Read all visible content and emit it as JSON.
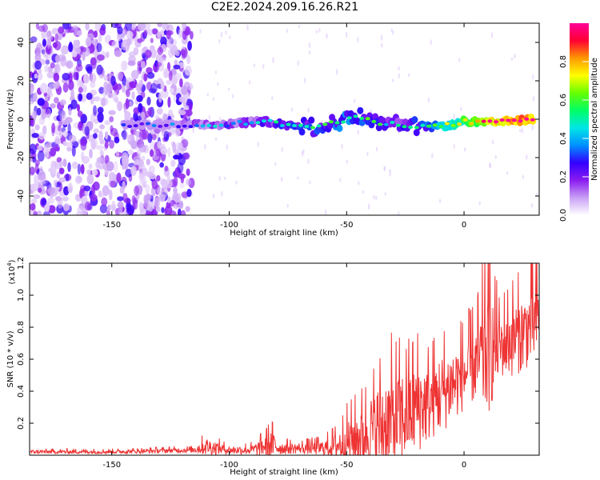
{
  "page": {
    "title": "C2E2.2024.209.16.26.R21"
  },
  "chart_data": [
    {
      "type": "heatmap",
      "name": "spectrogram",
      "xlabel": "Height of straight line (km)",
      "ylabel": "Frequency (Hz)",
      "xlim": [
        -185,
        32
      ],
      "ylim": [
        -50,
        50
      ],
      "xticks": [
        -150,
        -100,
        -50,
        0
      ],
      "yticks": [
        -40,
        -20,
        0,
        20,
        40
      ],
      "noise_region": {
        "x_range": [
          -185,
          -116
        ],
        "y_range": [
          -50,
          50
        ]
      },
      "signal_track": {
        "x": [
          -145,
          -135,
          -125,
          -115,
          -105,
          -95,
          -85,
          -75,
          -65,
          -55,
          -45,
          -35,
          -25,
          -15,
          -5,
          0,
          10,
          20,
          30
        ],
        "y": [
          -3,
          -3,
          -3,
          -3,
          -3,
          -2,
          -1,
          -3,
          -4,
          -2,
          1,
          -2,
          -3,
          -4,
          -3,
          -1,
          -2,
          -1,
          0
        ],
        "amplitude": [
          0.15,
          0.15,
          0.2,
          0.25,
          0.3,
          0.3,
          0.35,
          0.4,
          0.4,
          0.45,
          0.45,
          0.4,
          0.35,
          0.45,
          0.6,
          0.7,
          0.85,
          0.95,
          0.95
        ]
      },
      "colorbar": {
        "label": "Normalized spectral amplitude",
        "range": [
          0,
          1
        ],
        "ticks": [
          "0.0",
          "0.2",
          "0.4",
          "0.6",
          "0.8"
        ],
        "tick_values": [
          0.0,
          0.2,
          0.4,
          0.6,
          0.8
        ],
        "colors": [
          "#ffffff",
          "#c9a0f5",
          "#8a1cf0",
          "#3300ff",
          "#0090ff",
          "#00e6e6",
          "#00ff66",
          "#66ff00",
          "#ffff00",
          "#ff9900",
          "#ff0033",
          "#ff0099"
        ]
      }
    },
    {
      "type": "line",
      "name": "snr",
      "xlabel": "Height of straight line (km)",
      "ylabel": "SNR (10 * v/v)",
      "yscale_label": "(x10",
      "yscale_exp": "4",
      "xlim": [
        -185,
        32
      ],
      "ylim": [
        0,
        1.2
      ],
      "xticks": [
        -150,
        -100,
        -50,
        0
      ],
      "yticks": [
        "0.2",
        "0.4",
        "0.6",
        "0.8",
        "1.0",
        "1.2"
      ],
      "ytick_values": [
        0.2,
        0.4,
        0.6,
        0.8,
        1.0,
        1.2
      ],
      "line_color": "#ee3333",
      "envelope": {
        "x": [
          -185,
          -150,
          -120,
          -116,
          -110,
          -105,
          -100,
          -90,
          -85,
          -82,
          -78,
          -70,
          -60,
          -55,
          -50,
          -45,
          -40,
          -35,
          -30,
          -25,
          -20,
          -15,
          -10,
          -5,
          0,
          5,
          8,
          10,
          15,
          20,
          25,
          30,
          32
        ],
        "base": [
          0.02,
          0.02,
          0.03,
          0.03,
          0.05,
          0.04,
          0.03,
          0.03,
          0.05,
          0.06,
          0.04,
          0.04,
          0.04,
          0.05,
          0.07,
          0.1,
          0.13,
          0.16,
          0.18,
          0.22,
          0.28,
          0.3,
          0.36,
          0.42,
          0.48,
          0.55,
          0.58,
          0.62,
          0.66,
          0.7,
          0.74,
          0.8,
          0.85
        ],
        "amp": [
          0.015,
          0.015,
          0.02,
          0.02,
          0.07,
          0.05,
          0.03,
          0.04,
          0.08,
          0.12,
          0.05,
          0.04,
          0.06,
          0.1,
          0.18,
          0.22,
          0.28,
          0.38,
          0.42,
          0.36,
          0.38,
          0.3,
          0.32,
          0.3,
          0.28,
          0.3,
          0.45,
          0.55,
          0.25,
          0.3,
          0.3,
          0.32,
          0.3
        ]
      }
    }
  ]
}
